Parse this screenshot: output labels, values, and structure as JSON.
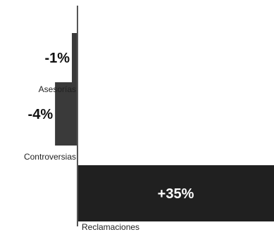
{
  "chart_data": {
    "type": "bar",
    "orientation": "horizontal",
    "categories": [
      "Asesorías",
      "Controversias",
      "Reclamaciones"
    ],
    "values": [
      -1,
      -4,
      35
    ],
    "value_labels": [
      "-1%",
      "-4%",
      "+35%"
    ],
    "xlim": [
      -6,
      35
    ],
    "grid": false,
    "legend": "none",
    "colors": {
      "negative_bar": "#3a3a3a",
      "positive_bar": "#202020",
      "axis": "#555555",
      "label_dark": "#111111",
      "label_light": "#ffffff"
    }
  }
}
